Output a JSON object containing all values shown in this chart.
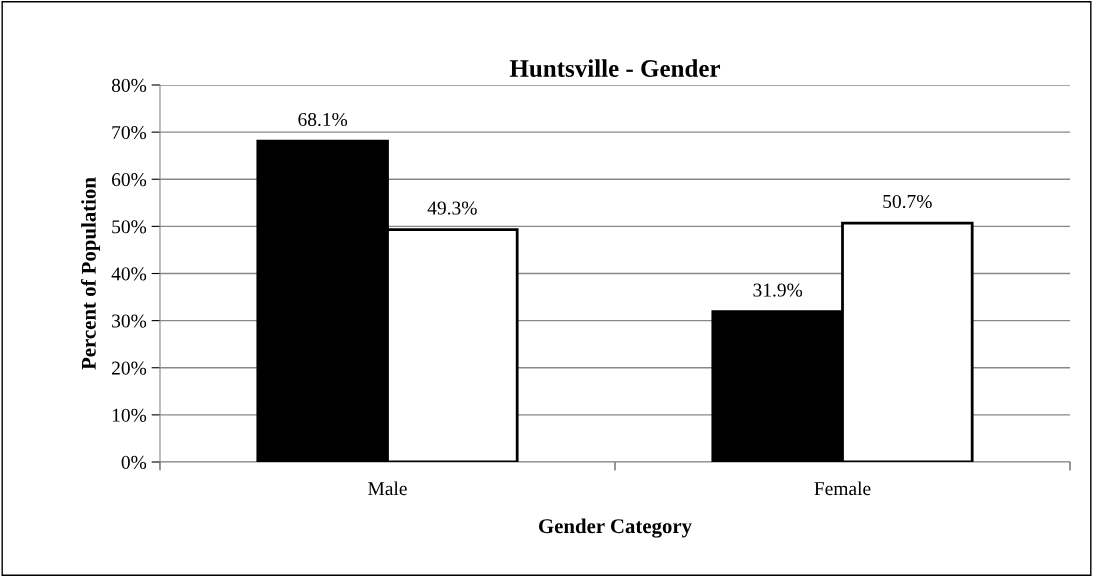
{
  "chart_data": {
    "type": "bar",
    "title": "Huntsville - Gender",
    "xlabel": "Gender Category",
    "ylabel": "Percent of Population",
    "categories": [
      "Male",
      "Female"
    ],
    "series": [
      {
        "color": "#000000",
        "values": [
          68.1,
          31.9
        ],
        "value_labels": [
          "68.1%",
          "31.9%"
        ]
      },
      {
        "color": "#ffffff",
        "values": [
          49.3,
          50.7
        ],
        "value_labels": [
          "49.3%",
          "50.7%"
        ]
      }
    ],
    "ylim": [
      0,
      80
    ],
    "yticks": [
      {
        "value": 0,
        "label": "0%"
      },
      {
        "value": 10,
        "label": "10%"
      },
      {
        "value": 20,
        "label": "20%"
      },
      {
        "value": 30,
        "label": "30%"
      },
      {
        "value": 40,
        "label": "40%"
      },
      {
        "value": 50,
        "label": "50%"
      },
      {
        "value": 60,
        "label": "60%"
      },
      {
        "value": 70,
        "label": "70%"
      },
      {
        "value": 80,
        "label": "80%"
      }
    ],
    "grid": "y",
    "legend": false
  }
}
